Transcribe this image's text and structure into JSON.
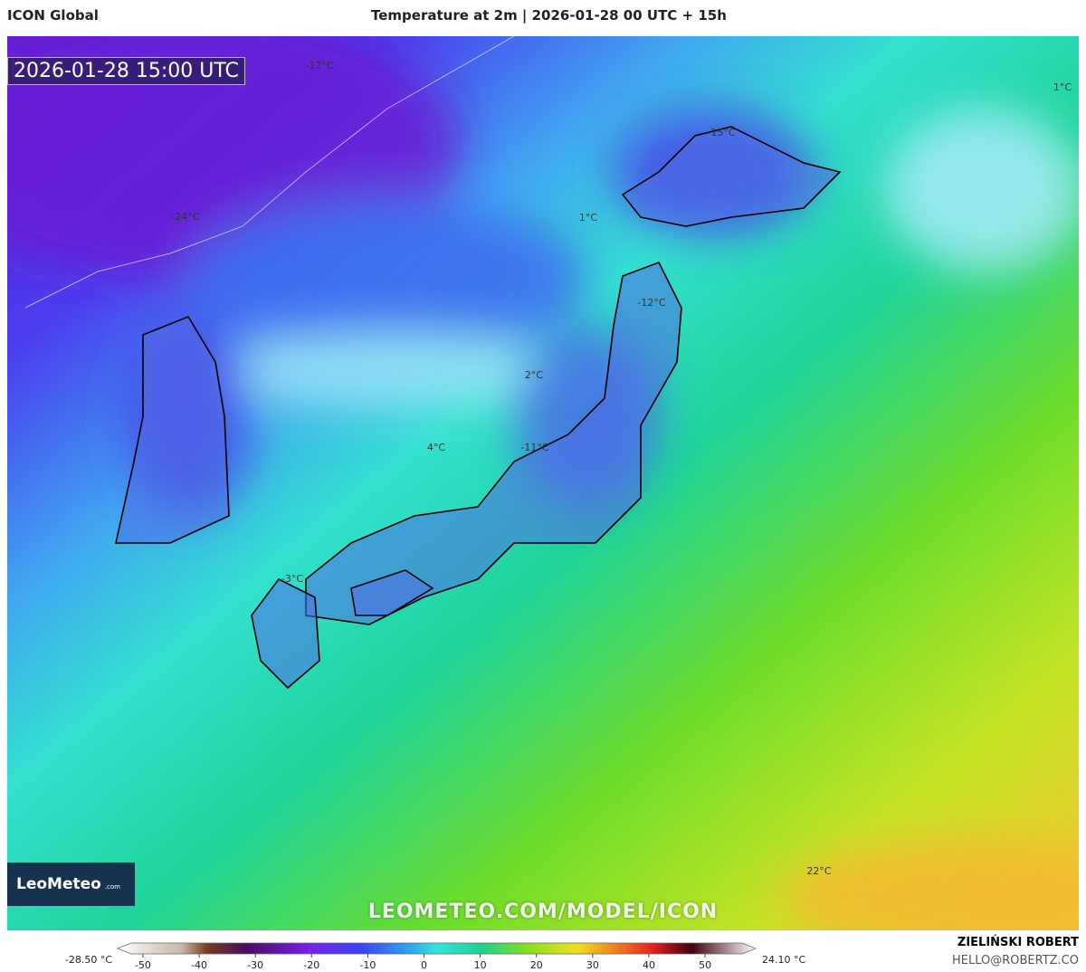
{
  "header": {
    "model": "ICON Global",
    "title": "Temperature at 2m | 2026-01-28 00 UTC + 15h"
  },
  "map": {
    "valid_time": "2026-01-28 15:00 UTC",
    "labels": [
      "-17°C",
      "1°C",
      "-15°C",
      "-24°C",
      "1°C",
      "-12°C",
      "2°C",
      "4°C",
      "-11°C",
      "-3°C",
      "22°C"
    ],
    "logo": "LeoMeteo",
    "logo_suffix": ".com",
    "watermark": "LEOMETEO.COM/MODEL/ICON"
  },
  "colorbar": {
    "min_label": "-28.50 °C",
    "max_label": "24.10 °C",
    "lim": [
      -54.5,
      59
    ],
    "ticks": [
      -50,
      -40,
      -30,
      -20,
      -10,
      0,
      10,
      20,
      30,
      40,
      50
    ]
  },
  "footer": {
    "author": "ZIELIŃSKI ROBERT",
    "email": "HELLO@ROBERTZ.CO"
  }
}
